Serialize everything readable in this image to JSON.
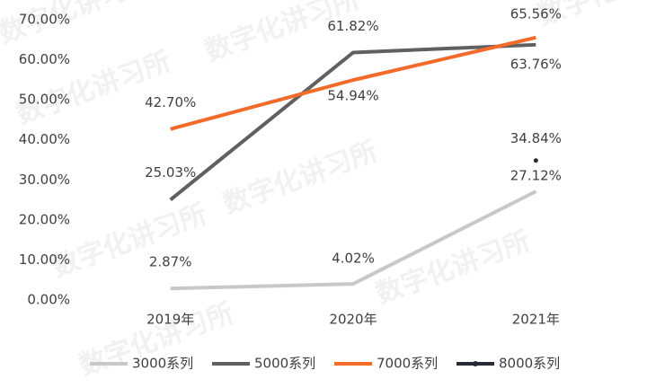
{
  "chart_data": {
    "type": "line",
    "categories": [
      "2019年",
      "2020年",
      "2021年"
    ],
    "series": [
      {
        "name": "3000系列",
        "color": "#c8c8c8",
        "values": [
          2.87,
          4.02,
          27.12
        ],
        "value_labels": [
          "2.87%",
          "4.02%",
          "27.12%"
        ]
      },
      {
        "name": "5000系列",
        "color": "#606060",
        "values": [
          25.03,
          61.82,
          63.76
        ],
        "value_labels": [
          "25.03%",
          "61.82%",
          "63.76%"
        ]
      },
      {
        "name": "7000系列",
        "color": "#f26b2a",
        "values": [
          42.7,
          54.94,
          65.56
        ],
        "value_labels": [
          "42.70%",
          "54.94%",
          "65.56%"
        ]
      },
      {
        "name": "8000系列",
        "color": "#262c36",
        "values": [
          null,
          null,
          34.84
        ],
        "value_labels": [
          null,
          null,
          "34.84%"
        ]
      }
    ],
    "ylim": [
      0,
      70
    ],
    "yticks": [
      {
        "value": 0,
        "label": "0.00%"
      },
      {
        "value": 10,
        "label": "10.00%"
      },
      {
        "value": 20,
        "label": "20.00%"
      },
      {
        "value": 30,
        "label": "30.00%"
      },
      {
        "value": 40,
        "label": "40.00%"
      },
      {
        "value": 50,
        "label": "50.00%"
      },
      {
        "value": 60,
        "label": "60.00%"
      },
      {
        "value": 70,
        "label": "70.00%"
      }
    ],
    "grid": false,
    "legend": "bottom",
    "watermark": "数字化讲习所"
  }
}
